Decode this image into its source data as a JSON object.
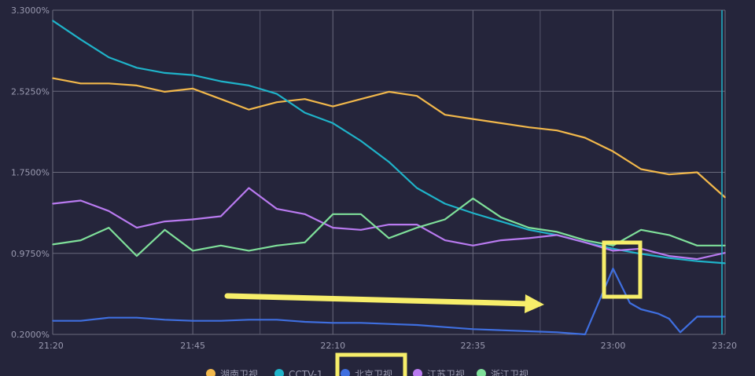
{
  "chart_data": {
    "type": "line",
    "x_ticks": [
      "21:20",
      "21:45",
      "22:10",
      "22:35",
      "23:00",
      "23:20"
    ],
    "x_range": [
      "21:20",
      "23:20"
    ],
    "y_ticks": [
      "3.3000%",
      "2.5250%",
      "1.7500%",
      "0.9750%",
      "0.2000%"
    ],
    "ylim": [
      0.2,
      3.3
    ],
    "y_unit": "%",
    "grid": true,
    "legend_position": "bottom-center",
    "cursor_time": "23:20",
    "series": [
      {
        "name": "湖南卫视",
        "color": "#f2b84b",
        "x": [
          "21:20",
          "21:25",
          "21:30",
          "21:35",
          "21:40",
          "21:45",
          "21:50",
          "21:55",
          "22:00",
          "22:05",
          "22:10",
          "22:15",
          "22:20",
          "22:25",
          "22:30",
          "22:35",
          "22:40",
          "22:45",
          "22:50",
          "22:55",
          "23:00",
          "23:05",
          "23:10",
          "23:15",
          "23:20"
        ],
        "values": [
          2.65,
          2.6,
          2.6,
          2.58,
          2.52,
          2.55,
          2.45,
          2.35,
          2.42,
          2.45,
          2.38,
          2.45,
          2.52,
          2.48,
          2.3,
          2.26,
          2.22,
          2.18,
          2.15,
          2.08,
          1.95,
          1.78,
          1.73,
          1.75,
          1.51
        ]
      },
      {
        "name": "CCTV-1",
        "color": "#1fb3c9",
        "x": [
          "21:20",
          "21:25",
          "21:30",
          "21:35",
          "21:40",
          "21:45",
          "21:50",
          "21:55",
          "22:00",
          "22:05",
          "22:10",
          "22:15",
          "22:20",
          "22:25",
          "22:30",
          "22:35",
          "22:40",
          "22:45",
          "22:50",
          "22:55",
          "23:00",
          "23:05",
          "23:10",
          "23:15",
          "23:20"
        ],
        "values": [
          3.2,
          3.02,
          2.85,
          2.75,
          2.7,
          2.68,
          2.62,
          2.58,
          2.5,
          2.32,
          2.22,
          2.05,
          1.85,
          1.6,
          1.45,
          1.36,
          1.28,
          1.2,
          1.15,
          1.08,
          1.02,
          0.97,
          0.93,
          0.9,
          0.88
        ]
      },
      {
        "name": "北京卫视",
        "color": "#3f6fe0",
        "x": [
          "21:20",
          "21:25",
          "21:30",
          "21:35",
          "21:40",
          "21:45",
          "21:50",
          "21:55",
          "22:00",
          "22:05",
          "22:10",
          "22:15",
          "22:20",
          "22:25",
          "22:30",
          "22:35",
          "22:40",
          "22:45",
          "22:50",
          "22:55",
          "23:00",
          "23:03",
          "23:05",
          "23:08",
          "23:10",
          "23:12",
          "23:15",
          "23:20"
        ],
        "values": [
          0.33,
          0.33,
          0.36,
          0.36,
          0.34,
          0.33,
          0.33,
          0.34,
          0.34,
          0.32,
          0.31,
          0.31,
          0.3,
          0.29,
          0.27,
          0.25,
          0.24,
          0.23,
          0.22,
          0.2,
          0.83,
          0.5,
          0.44,
          0.4,
          0.35,
          0.22,
          0.37,
          0.37
        ]
      },
      {
        "name": "江苏卫视",
        "color": "#b97af0",
        "x": [
          "21:20",
          "21:25",
          "21:30",
          "21:35",
          "21:40",
          "21:45",
          "21:50",
          "21:55",
          "22:00",
          "22:05",
          "22:10",
          "22:15",
          "22:20",
          "22:25",
          "22:30",
          "22:35",
          "22:40",
          "22:45",
          "22:50",
          "22:55",
          "23:00",
          "23:05",
          "23:10",
          "23:15",
          "23:20"
        ],
        "values": [
          1.45,
          1.48,
          1.38,
          1.22,
          1.28,
          1.3,
          1.33,
          1.6,
          1.4,
          1.35,
          1.22,
          1.2,
          1.25,
          1.25,
          1.1,
          1.05,
          1.1,
          1.12,
          1.15,
          1.08,
          1.0,
          1.02,
          0.95,
          0.92,
          0.98
        ]
      },
      {
        "name": "浙江卫视",
        "color": "#7fe09a",
        "x": [
          "21:20",
          "21:25",
          "21:30",
          "21:35",
          "21:40",
          "21:45",
          "21:50",
          "21:55",
          "22:00",
          "22:05",
          "22:10",
          "22:15",
          "22:20",
          "22:25",
          "22:30",
          "22:35",
          "22:40",
          "22:45",
          "22:50",
          "22:55",
          "23:00",
          "23:05",
          "23:10",
          "23:15",
          "23:20"
        ],
        "values": [
          1.06,
          1.1,
          1.22,
          0.95,
          1.2,
          1.0,
          1.05,
          1.0,
          1.05,
          1.08,
          1.35,
          1.35,
          1.12,
          1.22,
          1.3,
          1.5,
          1.32,
          1.22,
          1.18,
          1.1,
          1.05,
          1.2,
          1.15,
          1.05,
          1.05
        ]
      }
    ]
  },
  "annotations": {
    "highlight_color": "#f7ee6a"
  }
}
